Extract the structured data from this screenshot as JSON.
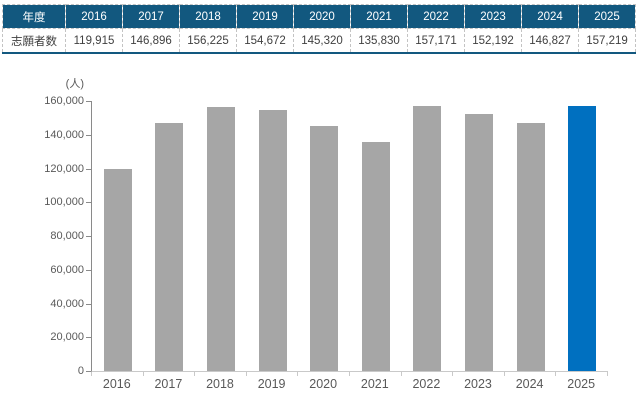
{
  "table": {
    "header_label": "年度",
    "row_label": "志願者数",
    "years": [
      "2016",
      "2017",
      "2018",
      "2019",
      "2020",
      "2021",
      "2022",
      "2023",
      "2024",
      "2025"
    ],
    "values": [
      "119,915",
      "146,896",
      "156,225",
      "154,672",
      "145,320",
      "135,830",
      "157,171",
      "152,192",
      "146,827",
      "157,219"
    ]
  },
  "chart_data": {
    "type": "bar",
    "title": "",
    "unit_label": "(人)",
    "categories": [
      "2016",
      "2017",
      "2018",
      "2019",
      "2020",
      "2021",
      "2022",
      "2023",
      "2024",
      "2025"
    ],
    "values": [
      119915,
      146896,
      156225,
      154672,
      145320,
      135830,
      157171,
      152192,
      146827,
      157219
    ],
    "ylim": [
      0,
      160000
    ],
    "ytick_step": 20000,
    "ytick_labels": [
      "0",
      "20,000",
      "40,000",
      "60,000",
      "80,000",
      "100,000",
      "120,000",
      "140,000",
      "160,000"
    ],
    "grid": false,
    "legend": "none",
    "bar_color": "#a6a6a6",
    "highlight_color": "#0070c0",
    "highlight_index": 9
  },
  "colors": {
    "table_header_bg": "#12587f",
    "table_border": "#c3c3c3",
    "table_underline": "#12587f",
    "axis_line": "#8a8a8a",
    "baseline": "#c9c9c9",
    "axis_text": "#595959",
    "table_text": "#404040"
  }
}
